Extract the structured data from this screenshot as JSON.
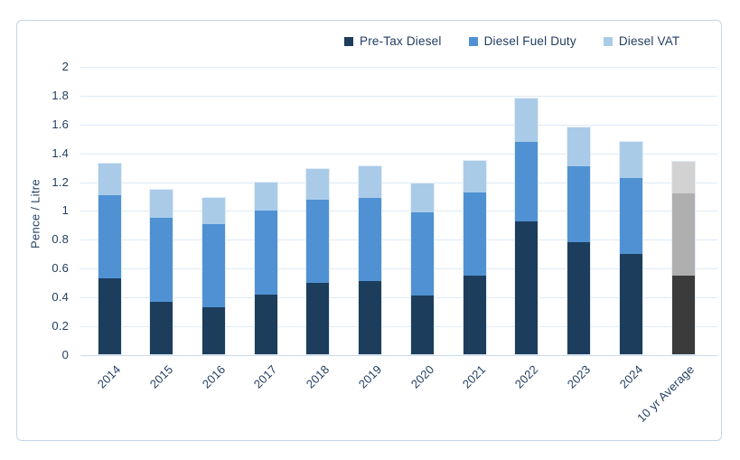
{
  "window": {
    "background": "#ffffff",
    "border_color": "#c2d6e6"
  },
  "legend": {
    "items": [
      {
        "label": "Pre-Tax Diesel",
        "color": "#1d3d5c"
      },
      {
        "label": "Diesel Fuel Duty",
        "color": "#4f91d3"
      },
      {
        "label": "Diesel VAT",
        "color": "#aacbe8"
      }
    ]
  },
  "axes": {
    "y_title": "Pence / Litre",
    "y_ticks": [
      {
        "label": "0",
        "value": 0
      },
      {
        "label": "0.2",
        "value": 0.2
      },
      {
        "label": "0.4",
        "value": 0.4
      },
      {
        "label": "0.6",
        "value": 0.6
      },
      {
        "label": "0.8",
        "value": 0.8
      },
      {
        "label": "1",
        "value": 1
      },
      {
        "label": "1.2",
        "value": 1.2
      },
      {
        "label": "1.4",
        "value": 1.4
      },
      {
        "label": "1.6",
        "value": 1.6
      },
      {
        "label": "1.8",
        "value": 1.8
      },
      {
        "label": "2",
        "value": 2
      }
    ]
  },
  "chart_data": {
    "type": "bar",
    "stacked": true,
    "title": "",
    "ylabel": "Pence / Litre",
    "xlabel": "",
    "ylim": [
      0,
      2
    ],
    "ytick_step": 0.2,
    "grid": true,
    "legend_position": "top",
    "categories": [
      "2014",
      "2015",
      "2016",
      "2017",
      "2018",
      "2019",
      "2020",
      "2021",
      "2022",
      "2023",
      "2024",
      "10 yr Average"
    ],
    "series": [
      {
        "name": "Pre-Tax Diesel",
        "color": "#1d3d5c",
        "values": [
          0.53,
          0.37,
          0.33,
          0.42,
          0.5,
          0.51,
          0.41,
          0.55,
          0.93,
          0.78,
          0.7,
          0.55
        ]
      },
      {
        "name": "Diesel Fuel Duty",
        "color": "#4f91d3",
        "values": [
          0.58,
          0.58,
          0.58,
          0.58,
          0.58,
          0.58,
          0.58,
          0.58,
          0.55,
          0.53,
          0.53,
          0.57
        ]
      },
      {
        "name": "Diesel VAT",
        "color": "#aacbe8",
        "values": [
          0.22,
          0.2,
          0.18,
          0.2,
          0.21,
          0.22,
          0.2,
          0.22,
          0.3,
          0.27,
          0.25,
          0.22
        ]
      }
    ],
    "totals": [
      1.33,
      1.15,
      1.09,
      1.2,
      1.29,
      1.31,
      1.19,
      1.35,
      1.78,
      1.58,
      1.48,
      1.34
    ],
    "special_category": {
      "index": 11,
      "label": "10 yr Average",
      "segment_colors": [
        "#3b3b3b",
        "#b0afaf",
        "#d3d2d2"
      ]
    },
    "gridline_color": "#deebf6",
    "axis_line_color": "#cbdcec",
    "text_color": "#1e3c5f"
  }
}
